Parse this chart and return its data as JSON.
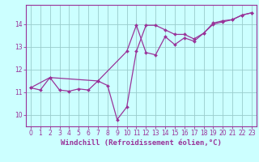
{
  "line1_x": [
    0,
    1,
    2,
    3,
    4,
    5,
    6,
    7,
    8,
    9,
    10,
    11,
    12,
    13,
    14,
    15,
    16,
    17,
    18,
    19,
    20,
    21,
    22,
    23
  ],
  "line1_y": [
    11.2,
    11.1,
    11.65,
    11.1,
    11.05,
    11.15,
    11.1,
    11.5,
    11.3,
    9.8,
    10.35,
    12.8,
    13.95,
    13.95,
    13.75,
    13.55,
    13.55,
    13.35,
    13.6,
    14.05,
    14.15,
    14.2,
    14.4,
    14.5
  ],
  "line2_x": [
    0,
    2,
    7,
    10,
    11,
    12,
    13,
    14,
    15,
    16,
    17,
    18,
    19,
    20,
    21,
    22,
    23
  ],
  "line2_y": [
    11.2,
    11.65,
    11.5,
    12.8,
    13.95,
    12.75,
    12.65,
    13.45,
    13.1,
    13.4,
    13.25,
    13.6,
    14.0,
    14.1,
    14.2,
    14.4,
    14.5
  ],
  "color": "#993399",
  "bg_color": "#ccffff",
  "grid_color": "#99cccc",
  "xlabel": "Windchill (Refroidissement éolien,°C)",
  "xlim": [
    -0.5,
    23.5
  ],
  "ylim": [
    9.5,
    14.85
  ],
  "yticks": [
    10,
    11,
    12,
    13,
    14
  ],
  "xticks": [
    0,
    1,
    2,
    3,
    4,
    5,
    6,
    7,
    8,
    9,
    10,
    11,
    12,
    13,
    14,
    15,
    16,
    17,
    18,
    19,
    20,
    21,
    22,
    23
  ],
  "tick_fontsize": 5.5,
  "xlabel_fontsize": 6.5,
  "marker_size": 2.0,
  "line_width": 0.9
}
